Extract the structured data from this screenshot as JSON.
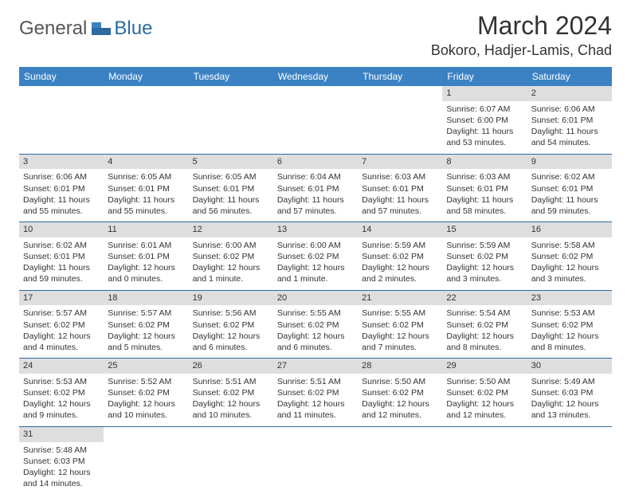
{
  "logo": {
    "general": "General",
    "blue": "Blue"
  },
  "title": "March 2024",
  "location": "Bokoro, Hadjer-Lamis, Chad",
  "header_bg": "#3b82c4",
  "header_text_color": "#ffffff",
  "daynum_bg": "#dedede",
  "week_border_color": "#2c6aa0",
  "daysOfWeek": [
    "Sunday",
    "Monday",
    "Tuesday",
    "Wednesday",
    "Thursday",
    "Friday",
    "Saturday"
  ],
  "weeks": [
    [
      null,
      null,
      null,
      null,
      null,
      {
        "n": "1",
        "sr": "Sunrise: 6:07 AM",
        "ss": "Sunset: 6:00 PM",
        "dl": "Daylight: 11 hours and 53 minutes."
      },
      {
        "n": "2",
        "sr": "Sunrise: 6:06 AM",
        "ss": "Sunset: 6:01 PM",
        "dl": "Daylight: 11 hours and 54 minutes."
      }
    ],
    [
      {
        "n": "3",
        "sr": "Sunrise: 6:06 AM",
        "ss": "Sunset: 6:01 PM",
        "dl": "Daylight: 11 hours and 55 minutes."
      },
      {
        "n": "4",
        "sr": "Sunrise: 6:05 AM",
        "ss": "Sunset: 6:01 PM",
        "dl": "Daylight: 11 hours and 55 minutes."
      },
      {
        "n": "5",
        "sr": "Sunrise: 6:05 AM",
        "ss": "Sunset: 6:01 PM",
        "dl": "Daylight: 11 hours and 56 minutes."
      },
      {
        "n": "6",
        "sr": "Sunrise: 6:04 AM",
        "ss": "Sunset: 6:01 PM",
        "dl": "Daylight: 11 hours and 57 minutes."
      },
      {
        "n": "7",
        "sr": "Sunrise: 6:03 AM",
        "ss": "Sunset: 6:01 PM",
        "dl": "Daylight: 11 hours and 57 minutes."
      },
      {
        "n": "8",
        "sr": "Sunrise: 6:03 AM",
        "ss": "Sunset: 6:01 PM",
        "dl": "Daylight: 11 hours and 58 minutes."
      },
      {
        "n": "9",
        "sr": "Sunrise: 6:02 AM",
        "ss": "Sunset: 6:01 PM",
        "dl": "Daylight: 11 hours and 59 minutes."
      }
    ],
    [
      {
        "n": "10",
        "sr": "Sunrise: 6:02 AM",
        "ss": "Sunset: 6:01 PM",
        "dl": "Daylight: 11 hours and 59 minutes."
      },
      {
        "n": "11",
        "sr": "Sunrise: 6:01 AM",
        "ss": "Sunset: 6:01 PM",
        "dl": "Daylight: 12 hours and 0 minutes."
      },
      {
        "n": "12",
        "sr": "Sunrise: 6:00 AM",
        "ss": "Sunset: 6:02 PM",
        "dl": "Daylight: 12 hours and 1 minute."
      },
      {
        "n": "13",
        "sr": "Sunrise: 6:00 AM",
        "ss": "Sunset: 6:02 PM",
        "dl": "Daylight: 12 hours and 1 minute."
      },
      {
        "n": "14",
        "sr": "Sunrise: 5:59 AM",
        "ss": "Sunset: 6:02 PM",
        "dl": "Daylight: 12 hours and 2 minutes."
      },
      {
        "n": "15",
        "sr": "Sunrise: 5:59 AM",
        "ss": "Sunset: 6:02 PM",
        "dl": "Daylight: 12 hours and 3 minutes."
      },
      {
        "n": "16",
        "sr": "Sunrise: 5:58 AM",
        "ss": "Sunset: 6:02 PM",
        "dl": "Daylight: 12 hours and 3 minutes."
      }
    ],
    [
      {
        "n": "17",
        "sr": "Sunrise: 5:57 AM",
        "ss": "Sunset: 6:02 PM",
        "dl": "Daylight: 12 hours and 4 minutes."
      },
      {
        "n": "18",
        "sr": "Sunrise: 5:57 AM",
        "ss": "Sunset: 6:02 PM",
        "dl": "Daylight: 12 hours and 5 minutes."
      },
      {
        "n": "19",
        "sr": "Sunrise: 5:56 AM",
        "ss": "Sunset: 6:02 PM",
        "dl": "Daylight: 12 hours and 6 minutes."
      },
      {
        "n": "20",
        "sr": "Sunrise: 5:55 AM",
        "ss": "Sunset: 6:02 PM",
        "dl": "Daylight: 12 hours and 6 minutes."
      },
      {
        "n": "21",
        "sr": "Sunrise: 5:55 AM",
        "ss": "Sunset: 6:02 PM",
        "dl": "Daylight: 12 hours and 7 minutes."
      },
      {
        "n": "22",
        "sr": "Sunrise: 5:54 AM",
        "ss": "Sunset: 6:02 PM",
        "dl": "Daylight: 12 hours and 8 minutes."
      },
      {
        "n": "23",
        "sr": "Sunrise: 5:53 AM",
        "ss": "Sunset: 6:02 PM",
        "dl": "Daylight: 12 hours and 8 minutes."
      }
    ],
    [
      {
        "n": "24",
        "sr": "Sunrise: 5:53 AM",
        "ss": "Sunset: 6:02 PM",
        "dl": "Daylight: 12 hours and 9 minutes."
      },
      {
        "n": "25",
        "sr": "Sunrise: 5:52 AM",
        "ss": "Sunset: 6:02 PM",
        "dl": "Daylight: 12 hours and 10 minutes."
      },
      {
        "n": "26",
        "sr": "Sunrise: 5:51 AM",
        "ss": "Sunset: 6:02 PM",
        "dl": "Daylight: 12 hours and 10 minutes."
      },
      {
        "n": "27",
        "sr": "Sunrise: 5:51 AM",
        "ss": "Sunset: 6:02 PM",
        "dl": "Daylight: 12 hours and 11 minutes."
      },
      {
        "n": "28",
        "sr": "Sunrise: 5:50 AM",
        "ss": "Sunset: 6:02 PM",
        "dl": "Daylight: 12 hours and 12 minutes."
      },
      {
        "n": "29",
        "sr": "Sunrise: 5:50 AM",
        "ss": "Sunset: 6:02 PM",
        "dl": "Daylight: 12 hours and 12 minutes."
      },
      {
        "n": "30",
        "sr": "Sunrise: 5:49 AM",
        "ss": "Sunset: 6:03 PM",
        "dl": "Daylight: 12 hours and 13 minutes."
      }
    ],
    [
      {
        "n": "31",
        "sr": "Sunrise: 5:48 AM",
        "ss": "Sunset: 6:03 PM",
        "dl": "Daylight: 12 hours and 14 minutes."
      },
      null,
      null,
      null,
      null,
      null,
      null
    ]
  ]
}
